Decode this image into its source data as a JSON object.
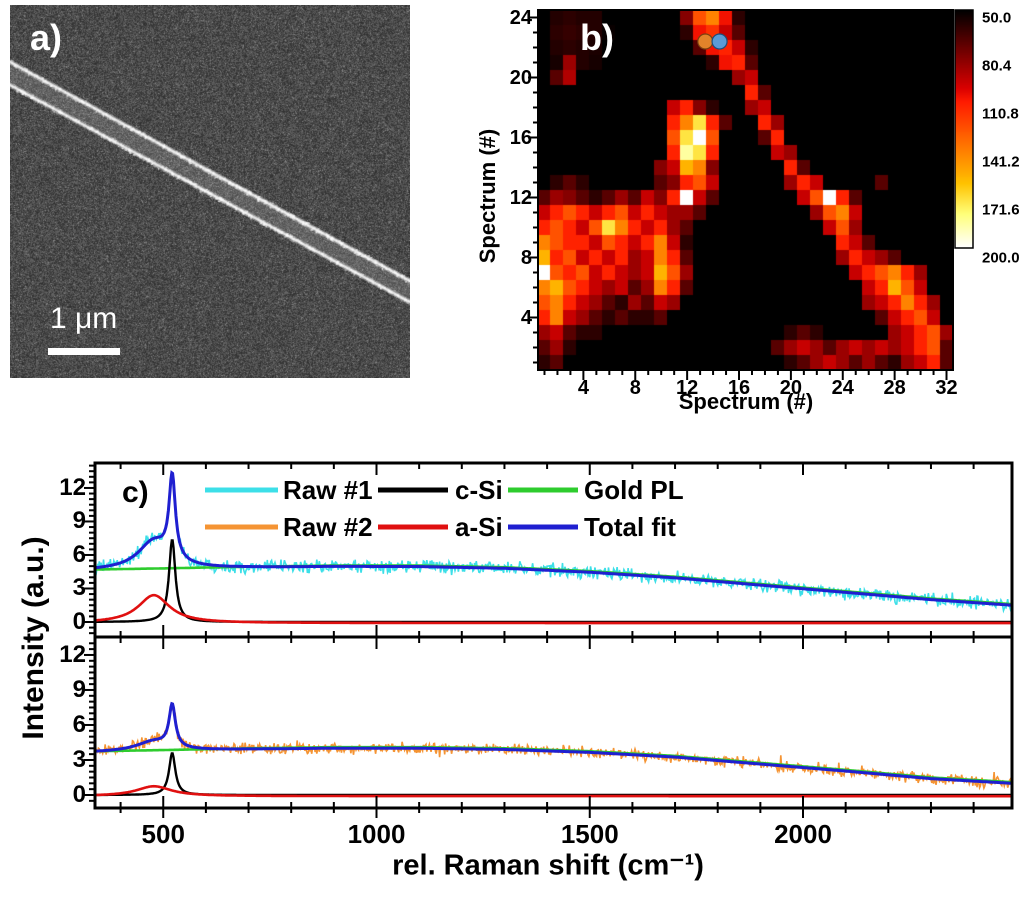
{
  "labels": {
    "panel_a": "a)",
    "panel_b": "b)",
    "panel_c": "c)",
    "scale_bar": "1 μm"
  },
  "chart_data": [
    {
      "id": "raman_map",
      "type": "heatmap",
      "xlabel": "Spectrum (#)",
      "ylabel": "Spectrum (#)",
      "x_ticks": [
        4,
        8,
        12,
        16,
        20,
        24,
        28,
        32
      ],
      "y_ticks": [
        4,
        8,
        12,
        16,
        20,
        24
      ],
      "x_range": [
        1,
        32
      ],
      "y_range": [
        1,
        24
      ],
      "colormap": "hot-black-red-yellow-white",
      "colorbar": {
        "min": 50.0,
        "max": 200.0,
        "tick_labels": [
          "50.0",
          "80.4",
          "110.8",
          "141.2",
          "171.6",
          "200.0"
        ]
      },
      "markers": [
        {
          "name": "spectrum-1-marker",
          "color": "#e2832a",
          "edge": "#7a4010",
          "x": 13.4,
          "y": 22.4
        },
        {
          "name": "spectrum-2-marker",
          "color": "#5b9bd5",
          "edge": "#1d4e79",
          "x": 14.5,
          "y": 22.4
        }
      ],
      "values_rows_top_to_bottom": [
        [
          50,
          58,
          60,
          58,
          58,
          50,
          50,
          50,
          50,
          50,
          50,
          80,
          125,
          140,
          105,
          60,
          50,
          50,
          50,
          50,
          50,
          50,
          50,
          50,
          50,
          50,
          50,
          50,
          50,
          50,
          50,
          50
        ],
        [
          50,
          60,
          62,
          60,
          58,
          52,
          50,
          50,
          50,
          50,
          50,
          60,
          105,
          115,
          95,
          70,
          50,
          50,
          50,
          50,
          50,
          50,
          50,
          50,
          50,
          50,
          50,
          50,
          50,
          50,
          50,
          50
        ],
        [
          50,
          58,
          60,
          58,
          56,
          50,
          50,
          50,
          50,
          50,
          50,
          50,
          70,
          105,
          110,
          95,
          60,
          50,
          50,
          50,
          50,
          50,
          50,
          50,
          50,
          50,
          50,
          50,
          50,
          50,
          50,
          50
        ],
        [
          50,
          55,
          85,
          58,
          55,
          50,
          50,
          50,
          50,
          50,
          50,
          50,
          50,
          60,
          105,
          110,
          70,
          50,
          50,
          50,
          50,
          50,
          50,
          50,
          50,
          50,
          50,
          50,
          50,
          50,
          50,
          50
        ],
        [
          50,
          70,
          90,
          50,
          50,
          50,
          50,
          50,
          50,
          50,
          50,
          50,
          50,
          50,
          50,
          85,
          95,
          50,
          50,
          50,
          50,
          50,
          50,
          50,
          50,
          50,
          50,
          50,
          50,
          50,
          50,
          50
        ],
        [
          50,
          50,
          50,
          50,
          50,
          50,
          50,
          50,
          50,
          50,
          50,
          50,
          50,
          50,
          50,
          50,
          110,
          70,
          50,
          50,
          50,
          50,
          50,
          50,
          50,
          50,
          50,
          50,
          50,
          50,
          50,
          50
        ],
        [
          50,
          50,
          50,
          50,
          50,
          50,
          50,
          50,
          50,
          50,
          95,
          110,
          80,
          60,
          50,
          50,
          85,
          95,
          50,
          50,
          50,
          50,
          50,
          50,
          50,
          50,
          50,
          50,
          50,
          50,
          50,
          50
        ],
        [
          50,
          50,
          50,
          50,
          50,
          50,
          50,
          50,
          50,
          50,
          110,
          140,
          170,
          110,
          70,
          50,
          50,
          110,
          85,
          50,
          50,
          50,
          50,
          50,
          50,
          50,
          50,
          50,
          50,
          50,
          50,
          50
        ],
        [
          50,
          50,
          50,
          50,
          50,
          50,
          50,
          50,
          50,
          50,
          125,
          170,
          200,
          125,
          50,
          50,
          50,
          70,
          110,
          50,
          50,
          50,
          50,
          50,
          50,
          50,
          50,
          50,
          50,
          50,
          50,
          50
        ],
        [
          50,
          50,
          50,
          50,
          50,
          50,
          50,
          50,
          50,
          50,
          110,
          185,
          170,
          110,
          50,
          50,
          50,
          50,
          95,
          85,
          50,
          50,
          50,
          50,
          50,
          50,
          50,
          50,
          50,
          50,
          50,
          50
        ],
        [
          50,
          50,
          50,
          50,
          50,
          50,
          50,
          50,
          50,
          80,
          95,
          155,
          140,
          80,
          50,
          50,
          50,
          50,
          50,
          110,
          70,
          50,
          50,
          50,
          50,
          50,
          50,
          50,
          50,
          50,
          50,
          50
        ],
        [
          50,
          60,
          70,
          60,
          50,
          50,
          50,
          50,
          50,
          70,
          80,
          110,
          125,
          95,
          50,
          50,
          50,
          50,
          50,
          85,
          110,
          95,
          50,
          50,
          50,
          50,
          70,
          50,
          50,
          50,
          50,
          50
        ],
        [
          70,
          85,
          80,
          70,
          60,
          70,
          85,
          70,
          95,
          80,
          110,
          200,
          95,
          70,
          50,
          50,
          50,
          50,
          50,
          50,
          95,
          125,
          200,
          110,
          70,
          50,
          50,
          50,
          50,
          50,
          50,
          50
        ],
        [
          95,
          110,
          125,
          110,
          95,
          110,
          125,
          95,
          110,
          95,
          85,
          85,
          70,
          50,
          50,
          50,
          50,
          50,
          50,
          50,
          50,
          85,
          125,
          140,
          95,
          50,
          50,
          50,
          50,
          50,
          50,
          50
        ],
        [
          110,
          125,
          110,
          95,
          125,
          170,
          140,
          110,
          95,
          110,
          85,
          70,
          50,
          50,
          50,
          50,
          50,
          50,
          50,
          50,
          50,
          50,
          95,
          125,
          85,
          50,
          50,
          50,
          50,
          50,
          50,
          50
        ],
        [
          140,
          125,
          110,
          110,
          95,
          125,
          110,
          95,
          110,
          140,
          95,
          60,
          50,
          50,
          50,
          50,
          50,
          50,
          50,
          50,
          50,
          50,
          50,
          110,
          95,
          70,
          50,
          50,
          50,
          50,
          50,
          50
        ],
        [
          155,
          110,
          125,
          95,
          110,
          95,
          110,
          85,
          95,
          140,
          110,
          70,
          50,
          50,
          50,
          50,
          50,
          50,
          50,
          50,
          50,
          50,
          50,
          85,
          110,
          95,
          85,
          70,
          50,
          50,
          50,
          50
        ],
        [
          200,
          125,
          110,
          125,
          95,
          110,
          95,
          85,
          95,
          155,
          125,
          85,
          50,
          50,
          50,
          50,
          50,
          50,
          50,
          50,
          50,
          50,
          50,
          50,
          95,
          110,
          125,
          140,
          110,
          85,
          50,
          50
        ],
        [
          140,
          155,
          125,
          110,
          95,
          85,
          95,
          70,
          85,
          140,
          110,
          70,
          50,
          50,
          50,
          50,
          50,
          50,
          50,
          50,
          50,
          50,
          50,
          50,
          50,
          95,
          110,
          155,
          125,
          95,
          50,
          50
        ],
        [
          125,
          140,
          110,
          95,
          85,
          70,
          60,
          85,
          70,
          95,
          85,
          50,
          50,
          50,
          50,
          50,
          50,
          50,
          50,
          50,
          50,
          50,
          50,
          50,
          50,
          85,
          95,
          110,
          140,
          110,
          85,
          50
        ],
        [
          110,
          140,
          95,
          85,
          70,
          60,
          70,
          60,
          60,
          70,
          50,
          50,
          50,
          50,
          50,
          50,
          50,
          50,
          50,
          50,
          50,
          50,
          50,
          50,
          50,
          50,
          70,
          95,
          110,
          125,
          95,
          50
        ],
        [
          85,
          95,
          70,
          60,
          60,
          50,
          50,
          50,
          50,
          50,
          50,
          50,
          50,
          50,
          50,
          50,
          50,
          50,
          50,
          60,
          70,
          60,
          50,
          50,
          50,
          50,
          50,
          85,
          95,
          110,
          125,
          85
        ],
        [
          70,
          85,
          60,
          50,
          50,
          50,
          50,
          50,
          50,
          50,
          50,
          50,
          50,
          50,
          50,
          50,
          50,
          50,
          70,
          85,
          95,
          85,
          70,
          85,
          95,
          85,
          95,
          85,
          95,
          110,
          125,
          70
        ],
        [
          60,
          70,
          50,
          50,
          50,
          50,
          50,
          50,
          50,
          50,
          50,
          50,
          50,
          50,
          50,
          50,
          50,
          50,
          50,
          60,
          70,
          85,
          95,
          85,
          70,
          85,
          70,
          60,
          85,
          95,
          110,
          70
        ]
      ]
    },
    {
      "id": "spectra",
      "type": "line",
      "xlabel": "rel. Raman shift (cm⁻¹)",
      "ylabel": "Intensity (a.u.)",
      "x_ticks": [
        500,
        1000,
        1500,
        2000
      ],
      "x_minor_step": 100,
      "y_ticks": [
        0,
        3,
        6,
        9,
        12
      ],
      "y_minor_step": 0.5,
      "x_range": [
        340,
        2490
      ],
      "y_range": [
        -1.3,
        14.2
      ],
      "legend_rows": [
        [
          {
            "label": "Raw #1",
            "color": "#3cdfe8"
          },
          {
            "label": "c-Si",
            "color": "#000000"
          },
          {
            "label": "Gold PL",
            "color": "#2ecc2e"
          }
        ],
        [
          {
            "label": "Raw #2",
            "color": "#f59433"
          },
          {
            "label": "a-Si",
            "color": "#e01010"
          },
          {
            "label": "Total fit",
            "color": "#1f1fd0"
          }
        ]
      ],
      "panels": [
        {
          "name": "spectrum_1",
          "raw": {
            "label": "Raw #1",
            "color": "#3cdfe8",
            "noise_amplitude": 0.55
          },
          "gold_pl": {
            "color": "#2ecc2e",
            "points": [
              [
                340,
                4.7
              ],
              [
                500,
                4.8
              ],
              [
                700,
                4.95
              ],
              [
                900,
                5.05
              ],
              [
                1100,
                5.05
              ],
              [
                1300,
                4.9
              ],
              [
                1500,
                4.55
              ],
              [
                1700,
                4.05
              ],
              [
                1900,
                3.4
              ],
              [
                2100,
                2.75
              ],
              [
                2300,
                2.1
              ],
              [
                2490,
                1.6
              ]
            ]
          },
          "a_si": {
            "color": "#e01010",
            "center": 478,
            "height": 2.5,
            "hwhm": 45,
            "baseline": -0.1
          },
          "c_si": {
            "color": "#000000",
            "center": 521,
            "height": 7.4,
            "hwhm": 9
          },
          "total_fit": {
            "color": "#1f1fd0",
            "peak_value": 12.4
          }
        },
        {
          "name": "spectrum_2",
          "raw": {
            "label": "Raw #2",
            "color": "#f59433",
            "noise_amplitude": 0.45
          },
          "gold_pl": {
            "color": "#2ecc2e",
            "points": [
              [
                340,
                3.75
              ],
              [
                500,
                3.85
              ],
              [
                700,
                4.0
              ],
              [
                900,
                4.1
              ],
              [
                1100,
                4.1
              ],
              [
                1300,
                4.0
              ],
              [
                1500,
                3.75
              ],
              [
                1700,
                3.35
              ],
              [
                1900,
                2.75
              ],
              [
                2100,
                2.15
              ],
              [
                2300,
                1.5
              ],
              [
                2490,
                1.1
              ]
            ]
          },
          "a_si": {
            "color": "#e01010",
            "center": 478,
            "height": 0.85,
            "hwhm": 50,
            "baseline": -0.1
          },
          "c_si": {
            "color": "#000000",
            "center": 521,
            "height": 3.6,
            "hwhm": 9
          },
          "total_fit": {
            "color": "#1f1fd0",
            "peak_value": 8.0
          }
        }
      ]
    }
  ]
}
